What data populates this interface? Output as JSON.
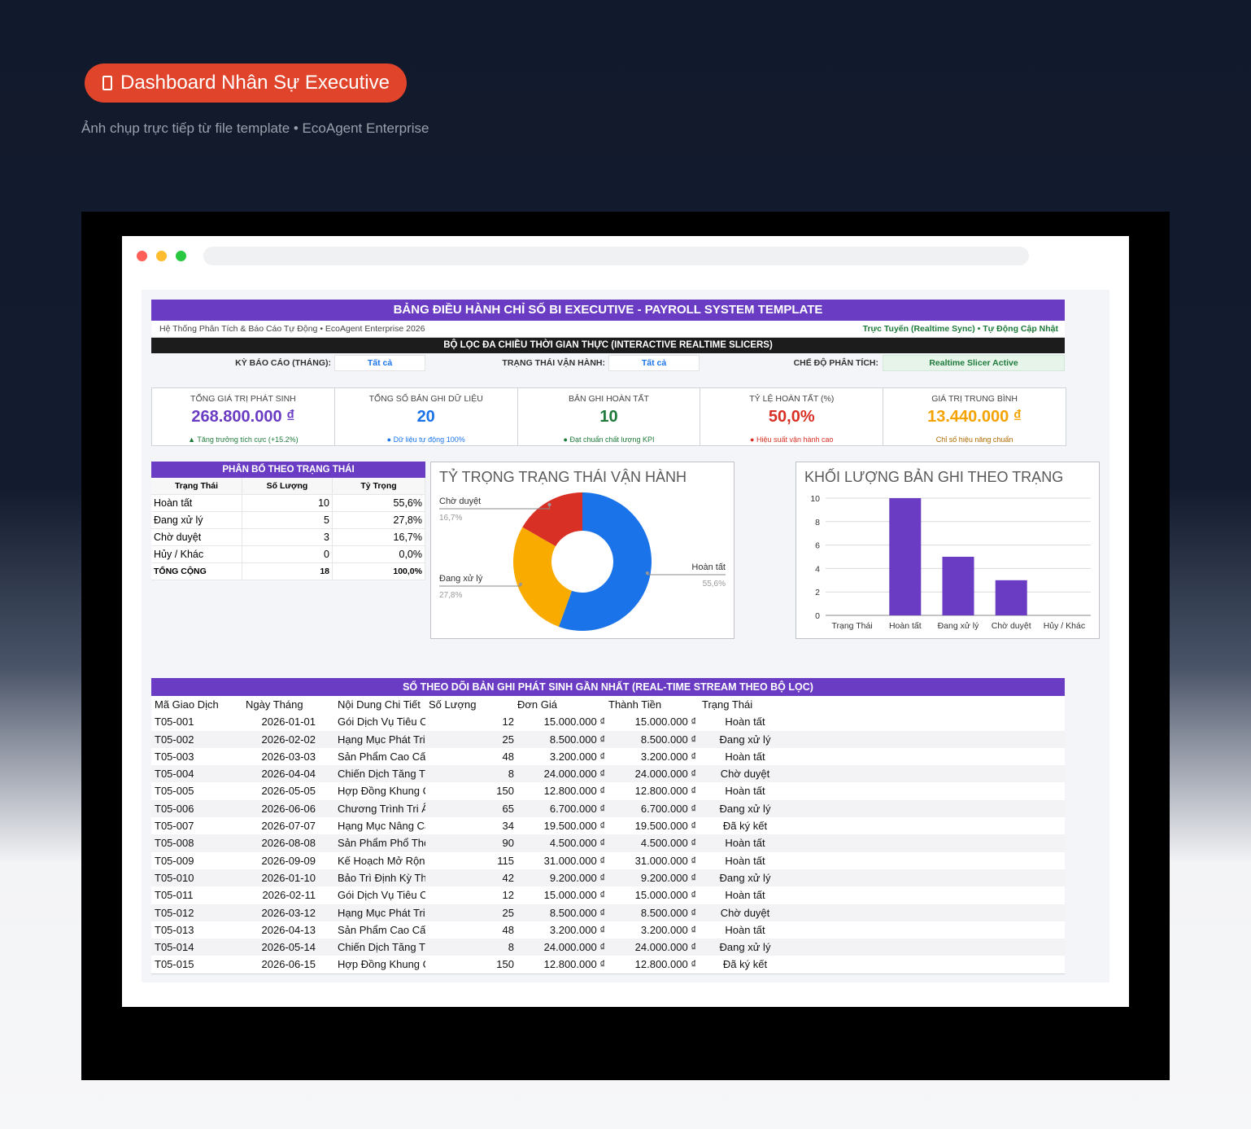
{
  "header": {
    "badge_label": "Dashboard Nhân Sự Executive",
    "caption": "Ảnh chụp trực tiếp từ file template • EcoAgent Enterprise"
  },
  "report": {
    "title": "BẢNG ĐIỀU HÀNH CHỈ SỐ BI EXECUTIVE - PAYROLL SYSTEM TEMPLATE",
    "subtitle_left": "Hệ Thống Phân Tích & Báo Cáo Tự Động • EcoAgent Enterprise 2026",
    "subtitle_right": "Trực Tuyến (Realtime Sync) • Tự Động Cập Nhật",
    "filter_title": "BỘ LỌC ĐA CHIỀU THỜI GIAN THỰC (INTERACTIVE REALTIME SLICERS)",
    "filters": {
      "period_label": "KỲ BÁO CÁO (THÁNG):",
      "period_value": "Tất cả",
      "status_label": "TRẠNG THÁI VẬN HÀNH:",
      "status_value": "Tất cả",
      "mode_label": "CHẾ ĐỘ PHÂN TÍCH:",
      "mode_value": "Realtime Slicer Active"
    }
  },
  "kpis": [
    {
      "label": "TỔNG GIÁ TRỊ PHÁT SINH",
      "value": "268.800.000 ₫",
      "note": "▲ Tăng trưởng tích cực (+15.2%)",
      "color": "#6a3bc3",
      "note_color": "#1e7a3a"
    },
    {
      "label": "TỔNG SỐ BẢN GHI DỮ LIỆU",
      "value": "20",
      "note": "● Dữ liệu tự động 100%",
      "color": "#1a73e8",
      "note_color": "#1a73e8"
    },
    {
      "label": "BẢN GHI HOÀN TẤT",
      "value": "10",
      "note": "● Đạt chuẩn chất lượng KPI",
      "color": "#1e7a3a",
      "note_color": "#1e7a3a"
    },
    {
      "label": "TỶ LỆ HOÀN TẤT (%)",
      "value": "50,0%",
      "note": "● Hiệu suất vận hành cao",
      "color": "#d93025",
      "note_color": "#d93025"
    },
    {
      "label": "GIÁ TRỊ TRUNG BÌNH",
      "value": "13.440.000 ₫",
      "note": "Chỉ số hiệu năng chuẩn",
      "color": "#f4a300",
      "note_color": "#b06a00"
    }
  ],
  "distribution": {
    "title": "PHÂN BỔ THEO TRẠNG THÁI",
    "headers": [
      "Trạng Thái",
      "Số Lượng",
      "Tỷ Trọng"
    ],
    "rows": [
      [
        "Hoàn tất",
        "10",
        "55,6%"
      ],
      [
        "Đang xử lý",
        "5",
        "27,8%"
      ],
      [
        "Chờ duyệt",
        "3",
        "16,7%"
      ],
      [
        "Hủy / Khác",
        "0",
        "0,0%"
      ]
    ],
    "total": [
      "TỔNG CỘNG",
      "18",
      "100,0%"
    ]
  },
  "chart_data": [
    {
      "type": "pie",
      "title": "TỶ TRỌNG TRẠNG THÁI VẬN HÀNH",
      "donut": true,
      "categories": [
        "Hoàn tất",
        "Đang xử lý",
        "Chờ duyệt"
      ],
      "values": [
        55.6,
        27.8,
        16.7
      ],
      "value_labels": [
        "55,6%",
        "27,8%",
        "16,7%"
      ],
      "colors": [
        "#1a73e8",
        "#f9ab00",
        "#d93025"
      ]
    },
    {
      "type": "bar",
      "title": "KHỐI LƯỢNG BẢN GHI THEO TRẠNG",
      "categories": [
        "Trạng Thái",
        "Hoàn tất",
        "Đang xử lý",
        "Chờ duyệt",
        "Hủy / Khác"
      ],
      "values": [
        0,
        10,
        5,
        3,
        0
      ],
      "ylim": [
        0,
        10
      ],
      "yticks": [
        0,
        2,
        4,
        6,
        8,
        10
      ],
      "color": "#6a3bc3",
      "grid": true
    }
  ],
  "ledger": {
    "title": "SỔ THEO DÕI BẢN GHI PHÁT SINH GẦN NHẤT (REAL-TIME STREAM THEO BỘ LỌC)",
    "columns": [
      "Mã Giao Dịch",
      "Ngày Tháng",
      "Nội Dung Chi Tiết",
      "Số Lượng",
      "Đơn Giá",
      "Thành Tiền",
      "Trạng Thái"
    ],
    "rows": [
      [
        "T05-001",
        "2026-01-01",
        "Gói Dịch Vụ Tiêu C",
        "12",
        "15.000.000 ₫",
        "15.000.000 ₫",
        "Hoàn tất"
      ],
      [
        "T05-002",
        "2026-02-02",
        "Hạng Mục Phát Tri",
        "25",
        "8.500.000 ₫",
        "8.500.000 ₫",
        "Đang xử lý"
      ],
      [
        "T05-003",
        "2026-03-03",
        "Sản Phẩm Cao Cấp",
        "48",
        "3.200.000 ₫",
        "3.200.000 ₫",
        "Hoàn tất"
      ],
      [
        "T05-004",
        "2026-04-04",
        "Chiến Dịch Tăng Tr",
        "8",
        "24.000.000 ₫",
        "24.000.000 ₫",
        "Chờ duyệt"
      ],
      [
        "T05-005",
        "2026-05-05",
        "Hợp Đồng Khung C",
        "150",
        "12.800.000 ₫",
        "12.800.000 ₫",
        "Hoàn tất"
      ],
      [
        "T05-006",
        "2026-06-06",
        "Chương Trình Tri Â",
        "65",
        "6.700.000 ₫",
        "6.700.000 ₫",
        "Đang xử lý"
      ],
      [
        "T05-007",
        "2026-07-07",
        "Hạng Mục Nâng Cấ",
        "34",
        "19.500.000 ₫",
        "19.500.000 ₫",
        "Đã ký kết"
      ],
      [
        "T05-008",
        "2026-08-08",
        "Sản Phẩm Phổ Thô",
        "90",
        "4.500.000 ₫",
        "4.500.000 ₫",
        "Hoàn tất"
      ],
      [
        "T05-009",
        "2026-09-09",
        "Kế Hoạch Mở Rộn",
        "115",
        "31.000.000 ₫",
        "31.000.000 ₫",
        "Hoàn tất"
      ],
      [
        "T05-010",
        "2026-01-10",
        "Bảo Trì Định Kỳ Th",
        "42",
        "9.200.000 ₫",
        "9.200.000 ₫",
        "Đang xử lý"
      ],
      [
        "T05-011",
        "2026-02-11",
        "Gói Dịch Vụ Tiêu C",
        "12",
        "15.000.000 ₫",
        "15.000.000 ₫",
        "Hoàn tất"
      ],
      [
        "T05-012",
        "2026-03-12",
        "Hạng Mục Phát Tri",
        "25",
        "8.500.000 ₫",
        "8.500.000 ₫",
        "Chờ duyệt"
      ],
      [
        "T05-013",
        "2026-04-13",
        "Sản Phẩm Cao Cấp",
        "48",
        "3.200.000 ₫",
        "3.200.000 ₫",
        "Hoàn tất"
      ],
      [
        "T05-014",
        "2026-05-14",
        "Chiến Dịch Tăng Tr",
        "8",
        "24.000.000 ₫",
        "24.000.000 ₫",
        "Đang xử lý"
      ],
      [
        "T05-015",
        "2026-06-15",
        "Hợp Đồng Khung C",
        "150",
        "12.800.000 ₫",
        "12.800.000 ₫",
        "Đã ký kết"
      ]
    ]
  }
}
